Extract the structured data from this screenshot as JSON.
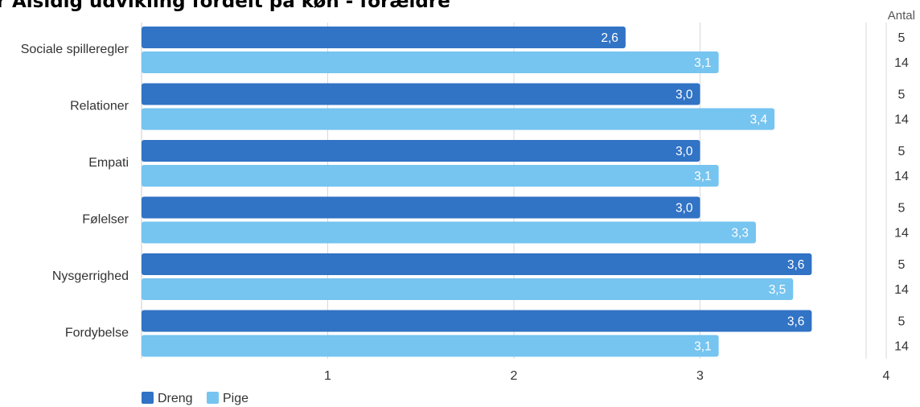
{
  "title": "er Alsidig udvikling fordelt på køn - forældre",
  "chart_data": {
    "type": "bar",
    "orientation": "horizontal",
    "categories": [
      "Sociale spilleregler",
      "Relationer",
      "Empati",
      "Følelser",
      "Nysgerrighed",
      "Fordybelse"
    ],
    "series": [
      {
        "name": "Dreng",
        "color": "#3173c5",
        "values": [
          2.6,
          3.0,
          3.0,
          3.0,
          3.6,
          3.6
        ],
        "value_labels": [
          "2,6",
          "3,0",
          "3,0",
          "3,0",
          "3,6",
          "3,6"
        ],
        "counts": [
          "5",
          "5",
          "5",
          "5",
          "5",
          "5"
        ]
      },
      {
        "name": "Pige",
        "color": "#76c4f0",
        "values": [
          3.1,
          3.4,
          3.1,
          3.3,
          3.5,
          3.1
        ],
        "value_labels": [
          "3,1",
          "3,4",
          "3,1",
          "3,3",
          "3,5",
          "3,1"
        ],
        "counts": [
          "14",
          "14",
          "14",
          "14",
          "14",
          "14"
        ]
      }
    ],
    "xlim": [
      0,
      4
    ],
    "x_ticks": [
      1,
      2,
      3,
      4
    ],
    "x_tick_labels": [
      "1",
      "2",
      "3",
      "4"
    ],
    "count_header": "Antal",
    "grid": true,
    "legend_position": "bottom-left"
  }
}
